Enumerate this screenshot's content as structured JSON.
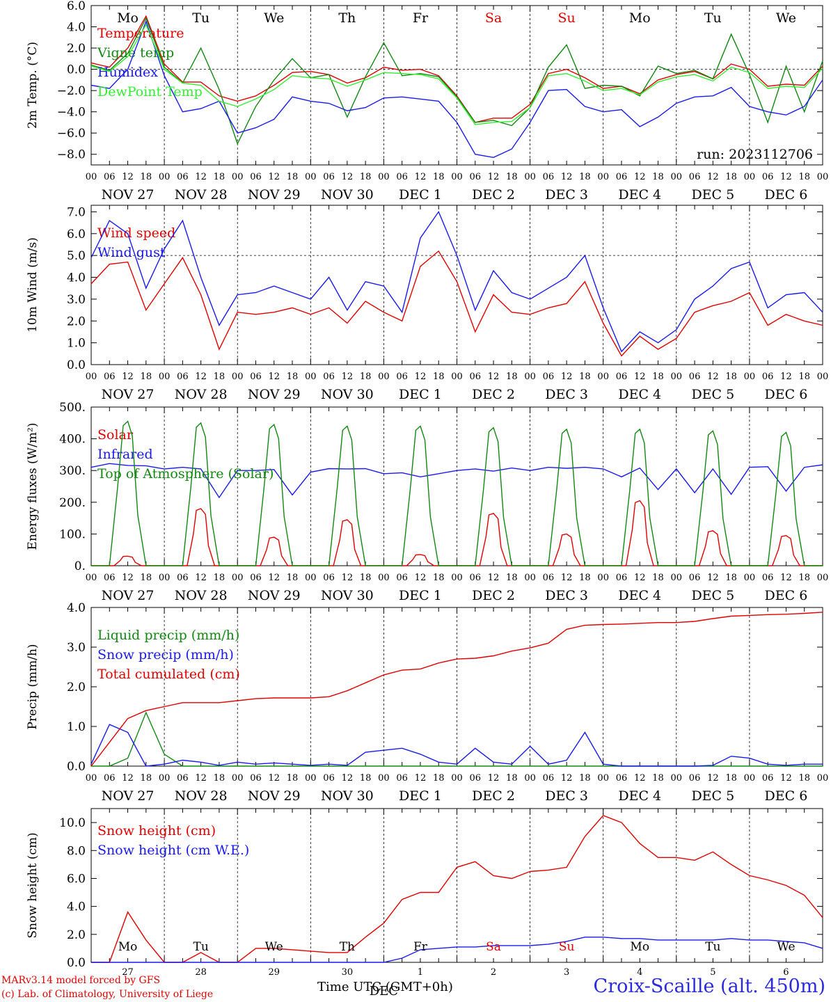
{
  "run_label": "run: 2023112706",
  "day_labels": [
    "Mo",
    "Tu",
    "We",
    "Th",
    "Fr",
    "Sa",
    "Su",
    "Mo",
    "Tu",
    "We"
  ],
  "day_colors": [
    "#000000",
    "#000000",
    "#000000",
    "#000000",
    "#000000",
    "#e00000",
    "#e00000",
    "#000000",
    "#000000",
    "#000000"
  ],
  "date_labels": [
    "NOV 27",
    "NOV 28",
    "NOV 29",
    "NOV 30",
    "DEC  1",
    "DEC  2",
    "DEC  3",
    "DEC  4",
    "DEC  5",
    "DEC  6"
  ],
  "hour_ticks": [
    "00",
    "06",
    "12",
    "18"
  ],
  "bottom_day_numbers": [
    "27",
    "28",
    "29",
    "30",
    "1",
    "2",
    "3",
    "4",
    "5",
    "6"
  ],
  "bottom_month_label": "DEC",
  "x_title": "Time UTC (GMT+0h)",
  "station": "Croix-Scaille (alt. 450m)",
  "credit_line1": "MARv3.14 model forced by GFS",
  "credit_line2": "(c) Lab. of Climatology, University of Liege",
  "colors": {
    "red": "#e00000",
    "green": "#118811",
    "blue": "#1a1aee",
    "lightgreen": "#33ee33"
  },
  "chart_data": [
    {
      "type": "line",
      "ylabel": "2m Temp. (°C)",
      "ylim": [
        -9,
        6
      ],
      "yticks": [
        "6.0",
        "4.0",
        "2.0",
        "0.0",
        "−2.0",
        "−4.0",
        "−6.0",
        "−8.0"
      ],
      "ytick_values": [
        6,
        4,
        2,
        0,
        -2,
        -4,
        -6,
        -8
      ],
      "hline": 0,
      "x_hours": [
        0,
        6,
        12,
        18,
        24,
        30,
        36,
        42,
        48,
        54,
        60,
        66,
        72,
        78,
        84,
        90,
        96,
        102,
        108,
        114,
        120,
        126,
        132,
        138,
        144,
        150,
        156,
        162,
        168,
        174,
        180,
        186,
        192,
        198,
        204,
        210,
        216,
        222,
        228,
        234,
        240
      ],
      "series": [
        {
          "name": "Temperature",
          "color": "#e00000",
          "values": [
            0.6,
            0.2,
            2,
            5,
            0.5,
            -1.2,
            -1.2,
            -2.5,
            -3,
            -2.5,
            -1.5,
            -0.3,
            -0.2,
            -0.5,
            -1.3,
            -0.8,
            0.2,
            -0.1,
            0,
            -0.6,
            -2.5,
            -5,
            -4.6,
            -4.6,
            -3.3,
            -0.4,
            0,
            -0.8,
            -1.8,
            -1.6,
            -2.3,
            -1,
            -0.5,
            -0.2,
            -0.9,
            0.5,
            0,
            -1.6,
            -1.4,
            -1.5,
            0.3
          ]
        },
        {
          "name": "Vigne temp",
          "color": "#118811",
          "values": [
            0.4,
            -0.1,
            1.5,
            4.8,
            0.2,
            -1.3,
            2,
            -1.9,
            -7,
            -3.5,
            -1,
            1,
            -0.8,
            -0.5,
            -4.5,
            -0.7,
            2.5,
            -0.6,
            -0.4,
            -0.7,
            -2.6,
            -5,
            -4.8,
            -5.3,
            -3.6,
            0.2,
            2.3,
            -1.8,
            -1.5,
            -1.6,
            -2.5,
            0.3,
            -0.4,
            -0.1,
            -0.9,
            3.3,
            -0.5,
            -5,
            0.3,
            -4,
            0.8
          ]
        },
        {
          "name": "Humidex",
          "color": "#1a1aee",
          "values": [
            -1.5,
            -1.8,
            0,
            4.5,
            -0.6,
            -4,
            -3.7,
            -3,
            -6,
            -5.5,
            -4.7,
            -2.6,
            -3,
            -3.2,
            -3.9,
            -3.6,
            -2.7,
            -2.6,
            -2.8,
            -3,
            -5,
            -8,
            -8.3,
            -7.5,
            -5,
            -2,
            -1.9,
            -3.5,
            -4,
            -3.8,
            -5.4,
            -4.5,
            -3.2,
            -2.6,
            -2.5,
            -1.7,
            -3.5,
            -4,
            -4.3,
            -3.5,
            -1
          ]
        },
        {
          "name": "DewPoint Temp",
          "color": "#33ee33",
          "values": [
            0.3,
            -0.2,
            1.2,
            4.2,
            0,
            -1.3,
            -1.5,
            -3,
            -3.5,
            -2.8,
            -1.9,
            -0.6,
            -0.8,
            -0.9,
            -1.6,
            -1,
            -0.3,
            -0.4,
            -0.5,
            -0.9,
            -2.7,
            -5.2,
            -5,
            -4.9,
            -3.6,
            -0.6,
            -0.4,
            -1.1,
            -2,
            -1.8,
            -2.4,
            -1.2,
            -0.7,
            -0.5,
            -1.1,
            0.2,
            -0.3,
            -1.8,
            -1.6,
            -1.7,
            0.1
          ]
        }
      ]
    },
    {
      "type": "line",
      "ylabel": "10m Wind (m/s)",
      "ylim": [
        0,
        7.3
      ],
      "yticks": [
        "7.0",
        "6.0",
        "5.0",
        "4.0",
        "3.0",
        "2.0",
        "1.0",
        "0.0"
      ],
      "ytick_values": [
        7,
        6,
        5,
        4,
        3,
        2,
        1,
        0
      ],
      "hline": 5,
      "x_hours": [
        0,
        6,
        12,
        18,
        24,
        30,
        36,
        42,
        48,
        54,
        60,
        66,
        72,
        78,
        84,
        90,
        96,
        102,
        108,
        114,
        120,
        126,
        132,
        138,
        144,
        150,
        156,
        162,
        168,
        174,
        180,
        186,
        192,
        198,
        204,
        210,
        216,
        222,
        228,
        234,
        240
      ],
      "series": [
        {
          "name": "Wind speed",
          "color": "#e00000",
          "values": [
            3.7,
            4.6,
            4.7,
            2.5,
            3.7,
            4.9,
            3.2,
            0.7,
            2.4,
            2.3,
            2.4,
            2.6,
            2.3,
            2.6,
            1.9,
            2.9,
            2.4,
            2.0,
            4.5,
            5.2,
            3.8,
            1.5,
            3.2,
            2.4,
            2.3,
            2.6,
            2.8,
            3.8,
            1.9,
            0.4,
            1.3,
            0.7,
            1.2,
            2.4,
            2.7,
            2.9,
            3.3,
            1.8,
            2.3,
            2.0,
            1.8
          ]
        },
        {
          "name": "Wind gust",
          "color": "#1a1aee",
          "values": [
            4.9,
            6.6,
            6.0,
            3.5,
            5.3,
            6.6,
            4.0,
            1.8,
            3.2,
            3.3,
            3.6,
            3.3,
            3.0,
            4.0,
            2.5,
            3.8,
            3.6,
            2.4,
            5.8,
            7.0,
            5.0,
            2.5,
            4.3,
            3.3,
            3.0,
            3.5,
            4.0,
            5.0,
            2.6,
            0.6,
            1.5,
            1.0,
            1.6,
            3.0,
            3.6,
            4.4,
            4.7,
            2.6,
            3.2,
            3.3,
            2.4
          ]
        }
      ]
    },
    {
      "type": "line",
      "ylabel": "Energy fluxes (W/m²)",
      "ylim": [
        0,
        500
      ],
      "yticks": [
        "500.",
        "400.",
        "300.",
        "200.",
        "100.",
        "0."
      ],
      "ytick_values": [
        500,
        400,
        300,
        200,
        100,
        0
      ],
      "series": [
        {
          "name": "Solar",
          "color": "#e00000",
          "peaks": [
            30,
            180,
            90,
            145,
            35,
            165,
            100,
            205,
            110,
            95
          ]
        },
        {
          "name": "Infrared",
          "color": "#1a1aee",
          "values": [
            310,
            322,
            316,
            315,
            305,
            310,
            305,
            215,
            300,
            300,
            303,
            223,
            295,
            306,
            305,
            306,
            290,
            293,
            280,
            290,
            300,
            305,
            298,
            308,
            300,
            310,
            307,
            310,
            305,
            280,
            308,
            240,
            305,
            230,
            305,
            225,
            310,
            312,
            235,
            310,
            318
          ]
        },
        {
          "name": "Top of Atmosphere (Solar)",
          "color": "#118811",
          "peaks": [
            455,
            450,
            445,
            440,
            440,
            435,
            430,
            430,
            425,
            420
          ]
        }
      ]
    },
    {
      "type": "line",
      "ylabel": "Precip (mm/h)",
      "ylim": [
        0,
        4
      ],
      "yticks": [
        "4.0",
        "3.0",
        "2.0",
        "1.0",
        "0.0"
      ],
      "ytick_values": [
        4,
        3,
        2,
        1,
        0
      ],
      "x_hours": [
        0,
        6,
        12,
        18,
        24,
        30,
        36,
        42,
        48,
        54,
        60,
        66,
        72,
        78,
        84,
        90,
        96,
        102,
        108,
        114,
        120,
        126,
        132,
        138,
        144,
        150,
        156,
        162,
        168,
        174,
        180,
        186,
        192,
        198,
        204,
        210,
        216,
        222,
        228,
        234,
        240
      ],
      "series": [
        {
          "name": "Liquid precip (mm/h)",
          "color": "#118811",
          "values": [
            0,
            0,
            0.2,
            1.35,
            0.3,
            0,
            0,
            0,
            0,
            0,
            0,
            0,
            0,
            0,
            0,
            0,
            0,
            0,
            0,
            0,
            0,
            0,
            0,
            0,
            0,
            0,
            0,
            0,
            0,
            0,
            0,
            0,
            0,
            0,
            0,
            0,
            0,
            0,
            0,
            0,
            0
          ]
        },
        {
          "name": "Snow precip (mm/h)",
          "color": "#1a1aee",
          "values": [
            0.05,
            1.05,
            0.85,
            0,
            0.05,
            0.15,
            0.1,
            0.02,
            0.1,
            0.05,
            0.08,
            0.05,
            0.02,
            0.05,
            0.02,
            0.35,
            0.4,
            0.45,
            0.3,
            0.1,
            0.05,
            0.45,
            0.1,
            0.05,
            0.5,
            0.05,
            0.15,
            0.85,
            0.05,
            0,
            0,
            0,
            0,
            0,
            0.02,
            0.25,
            0.2,
            0.05,
            0.02,
            0.05,
            0.05
          ]
        },
        {
          "name": "Total cumulated (cm)",
          "color": "#e00000",
          "values": [
            0,
            0.6,
            1.2,
            1.4,
            1.5,
            1.6,
            1.6,
            1.6,
            1.65,
            1.7,
            1.72,
            1.72,
            1.72,
            1.75,
            1.9,
            2.1,
            2.3,
            2.42,
            2.45,
            2.6,
            2.7,
            2.72,
            2.78,
            2.9,
            2.98,
            3.1,
            3.45,
            3.55,
            3.57,
            3.58,
            3.6,
            3.62,
            3.62,
            3.65,
            3.72,
            3.78,
            3.8,
            3.82,
            3.83,
            3.85,
            3.88
          ]
        }
      ]
    },
    {
      "type": "line",
      "ylabel": "Snow height (cm)",
      "ylim": [
        0,
        11
      ],
      "yticks": [
        "10.0",
        "8.0",
        "6.0",
        "4.0",
        "2.0",
        "0.0"
      ],
      "ytick_values": [
        10,
        8,
        6,
        4,
        2,
        0
      ],
      "x_hours": [
        0,
        6,
        12,
        18,
        24,
        30,
        36,
        42,
        48,
        54,
        60,
        66,
        72,
        78,
        84,
        90,
        96,
        102,
        108,
        114,
        120,
        126,
        132,
        138,
        144,
        150,
        156,
        162,
        168,
        174,
        180,
        186,
        192,
        198,
        204,
        210,
        216,
        222,
        228,
        234,
        240
      ],
      "series": [
        {
          "name": "Snow height (cm)",
          "color": "#e00000",
          "values": [
            0,
            0,
            3.6,
            1.6,
            0,
            0,
            0.7,
            0,
            0,
            1,
            1,
            0.9,
            0.8,
            0.7,
            0.7,
            1.8,
            2.8,
            4.5,
            5,
            5,
            6.8,
            7.2,
            6.2,
            6,
            6.5,
            6.6,
            6.8,
            9,
            10.5,
            10,
            8.5,
            7.5,
            7.5,
            7.3,
            7.9,
            7,
            6.2,
            5.9,
            5.5,
            4.8,
            3.2
          ]
        },
        {
          "name": "Snow height (cm W.E.)",
          "color": "#1a1aee",
          "values": [
            0,
            0,
            0,
            0,
            0,
            0,
            0,
            0,
            0,
            0,
            0,
            0,
            0,
            0,
            0,
            0,
            0,
            0.3,
            0.9,
            1.0,
            1.1,
            1.1,
            1.2,
            1.2,
            1.2,
            1.3,
            1.5,
            1.8,
            1.8,
            1.7,
            1.7,
            1.6,
            1.6,
            1.6,
            1.6,
            1.7,
            1.6,
            1.6,
            1.5,
            1.4,
            1.0
          ]
        }
      ]
    }
  ]
}
